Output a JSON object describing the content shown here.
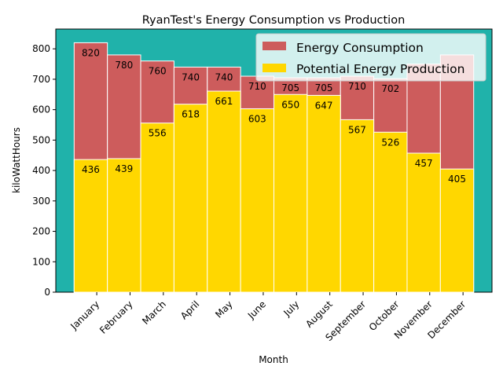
{
  "chart_data": {
    "type": "bar",
    "title": "RyanTest's Energy Consumption vs Production",
    "xlabel": "Month",
    "ylabel": "kiloWattHours",
    "categories": [
      "January",
      "February",
      "March",
      "April",
      "May",
      "June",
      "July",
      "August",
      "September",
      "October",
      "November",
      "December"
    ],
    "series": [
      {
        "name": "Energy Consumption",
        "values": [
          820,
          780,
          760,
          740,
          740,
          710,
          705,
          705,
          710,
          702,
          750,
          780
        ],
        "color": "#cd5c5c"
      },
      {
        "name": "Potential Energy Production",
        "values": [
          436,
          439,
          556,
          618,
          661,
          603,
          650,
          647,
          567,
          526,
          457,
          405
        ],
        "color": "#ffd700"
      }
    ],
    "value_labels": [
      [
        "820",
        "780",
        "760",
        "740",
        "740",
        "710",
        "705",
        "705",
        "710",
        "702",
        "",
        ""
      ],
      [
        "436",
        "439",
        "556",
        "618",
        "661",
        "603",
        "650",
        "647",
        "567",
        "526",
        "457",
        "405"
      ]
    ],
    "ylim": [
      0,
      865
    ],
    "yticks": [
      0,
      100,
      200,
      300,
      400,
      500,
      600,
      700,
      800
    ],
    "background_color": "#20b2aa",
    "grid": false,
    "legend_position": "top-right"
  }
}
